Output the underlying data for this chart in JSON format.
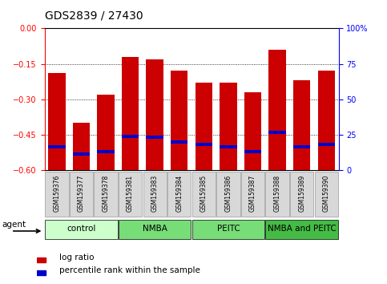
{
  "title": "GDS2839 / 27430",
  "samples": [
    "GSM159376",
    "GSM159377",
    "GSM159378",
    "GSM159381",
    "GSM159383",
    "GSM159384",
    "GSM159385",
    "GSM159386",
    "GSM159387",
    "GSM159388",
    "GSM159389",
    "GSM159390"
  ],
  "log_ratios": [
    -0.19,
    -0.4,
    -0.28,
    -0.12,
    -0.13,
    -0.18,
    -0.23,
    -0.23,
    -0.27,
    -0.09,
    -0.22,
    -0.18
  ],
  "percentile_values": [
    -0.5,
    -0.53,
    -0.52,
    -0.455,
    -0.46,
    -0.48,
    -0.49,
    -0.5,
    -0.52,
    -0.44,
    -0.5,
    -0.49
  ],
  "ylim": [
    -0.6,
    0.0
  ],
  "yticks": [
    0.0,
    -0.15,
    -0.3,
    -0.45,
    -0.6
  ],
  "right_yticks": [
    0,
    25,
    50,
    75,
    100
  ],
  "bar_color": "#cc0000",
  "blue_color": "#0000cc",
  "bar_width": 0.7,
  "groups": [
    {
      "label": "control",
      "indices": [
        0,
        1,
        2
      ],
      "color": "#ccffcc"
    },
    {
      "label": "NMBA",
      "indices": [
        3,
        4,
        5
      ],
      "color": "#77dd77"
    },
    {
      "label": "PEITC",
      "indices": [
        6,
        7,
        8
      ],
      "color": "#77dd77"
    },
    {
      "label": "NMBA and PEITC",
      "indices": [
        9,
        10,
        11
      ],
      "color": "#44bb44"
    }
  ],
  "legend_items": [
    {
      "label": "log ratio",
      "color": "#cc0000"
    },
    {
      "label": "percentile rank within the sample",
      "color": "#0000cc"
    }
  ],
  "agent_label": "agent",
  "title_fontsize": 10,
  "tick_fontsize": 7,
  "sample_fontsize": 5.5,
  "group_fontsize": 7.5
}
